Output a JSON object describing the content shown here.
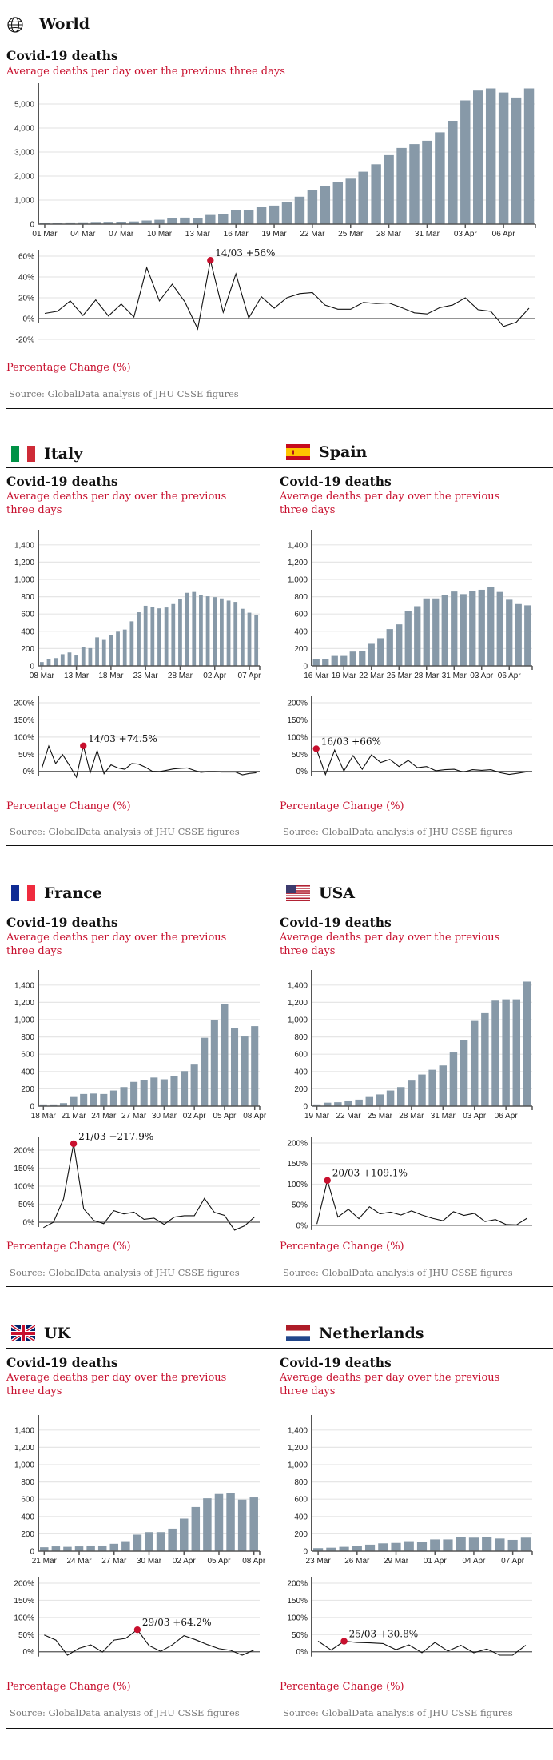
{
  "page": {
    "source_text": "Source: GlobalData analysis of JHU CSSE figures",
    "chart_title": "Covid-19 deaths",
    "chart_subtitle": "Average deaths per day over the previous three days",
    "pct_title": "Percentage Change (%)",
    "colors": {
      "bar": "#8799a8",
      "accent": "#c8102e",
      "line": "#111111",
      "grid": "#e6e6e6",
      "axis": "#555555"
    }
  },
  "sections": {
    "world": {
      "name": "World",
      "icon": "globe-icon"
    },
    "italy": {
      "name": "Italy",
      "icon": "italy-flag-icon"
    },
    "spain": {
      "name": "Spain",
      "icon": "spain-flag-icon"
    },
    "france": {
      "name": "France",
      "icon": "france-flag-icon"
    },
    "usa": {
      "name": "USA",
      "icon": "usa-flag-icon"
    },
    "uk": {
      "name": "UK",
      "icon": "uk-flag-icon"
    },
    "netherlands": {
      "name": "Netherlands",
      "icon": "netherlands-flag-icon"
    }
  },
  "chart_data": [
    {
      "id": "world-deaths",
      "type": "bar",
      "title": "Covid-19 deaths",
      "subtitle": "Average deaths per day over the previous three days",
      "xlabel": "",
      "ylabel": "",
      "ylim": [
        0,
        5600
      ],
      "yticks": [
        0,
        1000,
        2000,
        3000,
        4000,
        5000
      ],
      "yticklabels": [
        "0",
        "1,000",
        "2,000",
        "3,000",
        "4,000",
        "5,000"
      ],
      "xticks": [
        0,
        3,
        6,
        9,
        12,
        15,
        18,
        21,
        24,
        27,
        30,
        33,
        36
      ],
      "xticklabels": [
        "01 Mar",
        "04 Mar",
        "07 Mar",
        "10 Mar",
        "13 Mar",
        "16 Mar",
        "19 Mar",
        "22 Mar",
        "25 Mar",
        "28 Mar",
        "31 Mar",
        "03 Apr",
        "06 Apr"
      ],
      "values": [
        60,
        65,
        70,
        75,
        90,
        95,
        100,
        110,
        150,
        180,
        240,
        270,
        250,
        380,
        400,
        580,
        580,
        700,
        770,
        920,
        1140,
        1420,
        1600,
        1740,
        1890,
        2180,
        2490,
        2870,
        3170,
        3330,
        3470,
        3820,
        4300,
        5150,
        5560,
        5650,
        5480,
        5270,
        5650
      ],
      "grid": true
    },
    {
      "id": "world-change",
      "type": "line",
      "title": "Percentage Change (%)",
      "ylim": [
        -20,
        60
      ],
      "yticks": [
        -20,
        0,
        20,
        40,
        60
      ],
      "yticklabels": [
        "-20%",
        "0%",
        "20%",
        "40%",
        "60%"
      ],
      "values": [
        5,
        7,
        17,
        3,
        18,
        2.5,
        14,
        1.5,
        49,
        17,
        33,
        16,
        -10,
        56,
        6,
        43,
        0.5,
        21,
        10,
        20,
        24,
        25,
        13,
        9,
        9,
        15.5,
        14.5,
        15,
        10.5,
        5.5,
        4.5,
        10.5,
        13,
        20,
        8.5,
        7,
        -7.5,
        -3.5,
        10
      ],
      "highlight": {
        "index": 13,
        "label": "14/03 +56%"
      },
      "grid": true
    },
    {
      "id": "italy-deaths",
      "type": "bar",
      "title": "Covid-19 deaths",
      "subtitle": "Average deaths per day over the previous three days",
      "ylim": [
        0,
        1500
      ],
      "yticks": [
        0,
        200,
        400,
        600,
        800,
        1000,
        1200,
        1400
      ],
      "yticklabels": [
        "0",
        "200",
        "400",
        "600",
        "800",
        "1,000",
        "1,200",
        "1,400"
      ],
      "xticks": [
        0,
        5,
        10,
        15,
        20,
        25,
        30
      ],
      "xticklabels": [
        "08 Mar",
        "13 Mar",
        "18 Mar",
        "23 Mar",
        "28 Mar",
        "02 Apr",
        "07 Apr"
      ],
      "values": [
        45,
        75,
        90,
        135,
        155,
        120,
        215,
        205,
        330,
        300,
        355,
        395,
        420,
        515,
        620,
        695,
        685,
        665,
        675,
        715,
        775,
        845,
        855,
        820,
        805,
        795,
        780,
        755,
        740,
        660,
        615,
        590
      ],
      "grid": true
    },
    {
      "id": "italy-change",
      "type": "line",
      "title": "Percentage Change (%)",
      "ylim": [
        -10,
        200
      ],
      "yticks": [
        0,
        50,
        100,
        150,
        200
      ],
      "yticklabels": [
        "0%",
        "50%",
        "100%",
        "150%",
        "200%"
      ],
      "values": [
        9,
        74,
        23,
        49,
        17,
        -17,
        74.5,
        -4,
        61,
        -7,
        19,
        10,
        6,
        23,
        21,
        12,
        0,
        -1,
        3,
        7,
        9,
        10,
        3,
        -3,
        -1,
        -1,
        -2,
        -2,
        -2,
        -10,
        -6,
        -4
      ],
      "highlight": {
        "index": 6,
        "label": "14/03 +74.5%"
      },
      "grid": true
    },
    {
      "id": "spain-deaths",
      "type": "bar",
      "title": "Covid-19 deaths",
      "subtitle": "Average deaths per day over the previous three days",
      "ylim": [
        0,
        1500
      ],
      "yticks": [
        0,
        200,
        400,
        600,
        800,
        1000,
        1200,
        1400
      ],
      "yticklabels": [
        "0",
        "200",
        "400",
        "600",
        "800",
        "1,000",
        "1,200",
        "1,400"
      ],
      "xticks": [
        0,
        3,
        6,
        9,
        12,
        15,
        18,
        21
      ],
      "xticklabels": [
        "16 Mar",
        "19 Mar",
        "22 Mar",
        "25 Mar",
        "28 Mar",
        "31 Mar",
        "03 Apr",
        "06 Apr"
      ],
      "values": [
        80,
        75,
        115,
        115,
        165,
        170,
        255,
        320,
        425,
        480,
        630,
        690,
        780,
        780,
        815,
        860,
        830,
        865,
        880,
        910,
        855,
        765,
        715,
        700
      ],
      "grid": true
    },
    {
      "id": "spain-change",
      "type": "line",
      "title": "Percentage Change (%)",
      "ylim": [
        -10,
        200
      ],
      "yticks": [
        0,
        50,
        100,
        150,
        200
      ],
      "yticklabels": [
        "0%",
        "50%",
        "100%",
        "150%",
        "200%"
      ],
      "values": [
        66,
        -9,
        62,
        1,
        46,
        6,
        48,
        26,
        35,
        14,
        32,
        11,
        14,
        2,
        5,
        6,
        -2,
        5,
        3,
        5,
        -4,
        -9,
        -5,
        -1
      ],
      "highlight": {
        "index": 0,
        "label": "16/03 +66%"
      },
      "grid": true
    },
    {
      "id": "france-deaths",
      "type": "bar",
      "title": "Covid-19 deaths",
      "subtitle": "Average deaths per day over the previous three days",
      "ylim": [
        0,
        1500
      ],
      "yticks": [
        0,
        200,
        400,
        600,
        800,
        1000,
        1200,
        1400
      ],
      "yticklabels": [
        "0",
        "200",
        "400",
        "600",
        "800",
        "1,000",
        "1,200",
        "1,400"
      ],
      "xticks": [
        0,
        3,
        6,
        9,
        12,
        15,
        18,
        21
      ],
      "xticklabels": [
        "18 Mar",
        "21 Mar",
        "24 Mar",
        "27 Mar",
        "30 Mar",
        "02 Apr",
        "05 Apr",
        "08 Apr"
      ],
      "values": [
        20,
        20,
        35,
        105,
        140,
        145,
        140,
        180,
        220,
        280,
        300,
        330,
        310,
        345,
        405,
        480,
        790,
        1000,
        1180,
        900,
        805,
        925
      ],
      "grid": true
    },
    {
      "id": "france-change",
      "type": "line",
      "title": "Percentage Change (%)",
      "ylim": [
        -20,
        220
      ],
      "yticks": [
        0,
        50,
        100,
        150,
        200
      ],
      "yticklabels": [
        "0%",
        "50%",
        "100%",
        "150%",
        "200%"
      ],
      "values": [
        -15,
        0,
        65,
        217.9,
        37,
        5,
        -4,
        32,
        23,
        28,
        8,
        11,
        -6,
        14,
        18,
        18,
        66,
        27,
        19,
        -22,
        -10,
        15
      ],
      "highlight": {
        "index": 3,
        "label": "21/03 +217.9%"
      },
      "grid": true
    },
    {
      "id": "usa-deaths",
      "type": "bar",
      "title": "Covid-19 deaths",
      "subtitle": "Average deaths per day over the previous three days",
      "ylim": [
        0,
        1500
      ],
      "yticks": [
        0,
        200,
        400,
        600,
        800,
        1000,
        1200,
        1400
      ],
      "yticklabels": [
        "0",
        "200",
        "400",
        "600",
        "800",
        "1,000",
        "1,200",
        "1,400"
      ],
      "xticks": [
        0,
        3,
        6,
        9,
        12,
        15,
        18
      ],
      "xticklabels": [
        "19 Mar",
        "22 Mar",
        "25 Mar",
        "28 Mar",
        "31 Mar",
        "03 Apr",
        "06 Apr"
      ],
      "values": [
        20,
        40,
        45,
        65,
        75,
        105,
        135,
        180,
        220,
        295,
        365,
        420,
        470,
        620,
        765,
        985,
        1075,
        1220,
        1235,
        1235,
        1440
      ],
      "grid": true
    },
    {
      "id": "usa-change",
      "type": "line",
      "title": "Percentage Change (%)",
      "ylim": [
        -10,
        200
      ],
      "yticks": [
        0,
        50,
        100,
        150,
        200
      ],
      "yticklabels": [
        "0%",
        "50%",
        "100%",
        "150%",
        "200%"
      ],
      "values": [
        3,
        109.1,
        20,
        39,
        16,
        45,
        28,
        32,
        25,
        35,
        25,
        17,
        11,
        33,
        24,
        29,
        9,
        14,
        2,
        1,
        17
      ],
      "highlight": {
        "index": 1,
        "label": "20/03 +109.1%"
      },
      "grid": true
    },
    {
      "id": "uk-deaths",
      "type": "bar",
      "title": "Covid-19 deaths",
      "subtitle": "Average deaths per day over the previous three days",
      "ylim": [
        0,
        1500
      ],
      "yticks": [
        0,
        200,
        400,
        600,
        800,
        1000,
        1200,
        1400
      ],
      "yticklabels": [
        "0",
        "200",
        "400",
        "600",
        "800",
        "1,000",
        "1,200",
        "1,400"
      ],
      "xticks": [
        0,
        3,
        6,
        9,
        12,
        15,
        18
      ],
      "xticklabels": [
        "21 Mar",
        "24 Mar",
        "27 Mar",
        "30 Mar",
        "02 Apr",
        "05 Apr",
        "08 Apr"
      ],
      "values": [
        45,
        55,
        50,
        55,
        65,
        65,
        85,
        115,
        190,
        220,
        220,
        260,
        375,
        510,
        610,
        660,
        675,
        595,
        620
      ],
      "grid": true
    },
    {
      "id": "uk-change",
      "type": "line",
      "title": "Percentage Change (%)",
      "ylim": [
        -10,
        200
      ],
      "yticks": [
        0,
        50,
        100,
        150,
        200
      ],
      "yticklabels": [
        "0%",
        "50%",
        "100%",
        "150%",
        "200%"
      ],
      "values": [
        49,
        34,
        -10,
        10,
        20,
        -1,
        34,
        39,
        64.2,
        18,
        1,
        20,
        47,
        35,
        21,
        9,
        4,
        -10,
        5
      ],
      "highlight": {
        "index": 8,
        "label": "29/03 +64.2%"
      },
      "grid": true
    },
    {
      "id": "netherlands-deaths",
      "type": "bar",
      "title": "Covid-19 deaths",
      "subtitle": "Average deaths per day over the previous three days",
      "ylim": [
        0,
        1500
      ],
      "yticks": [
        0,
        200,
        400,
        600,
        800,
        1000,
        1200,
        1400
      ],
      "yticklabels": [
        "0",
        "200",
        "400",
        "600",
        "800",
        "1,000",
        "1,200",
        "1,400"
      ],
      "xticks": [
        0,
        3,
        6,
        9,
        12,
        15
      ],
      "xticklabels": [
        "23 Mar",
        "26 Mar",
        "29 Mar",
        "01 Apr",
        "04 Apr",
        "07 Apr"
      ],
      "values": [
        35,
        40,
        50,
        60,
        75,
        90,
        95,
        115,
        110,
        135,
        135,
        160,
        155,
        160,
        145,
        130,
        155
      ],
      "grid": true
    },
    {
      "id": "netherlands-change",
      "type": "line",
      "title": "Percentage Change (%)",
      "ylim": [
        -10,
        200
      ],
      "yticks": [
        0,
        50,
        100,
        150,
        200
      ],
      "yticklabels": [
        "0%",
        "50%",
        "100%",
        "150%",
        "200%"
      ],
      "values": [
        31,
        5,
        30.8,
        27,
        26,
        24,
        6,
        20,
        -3,
        27,
        2,
        19,
        -3,
        8,
        -10,
        -10,
        19
      ],
      "highlight": {
        "index": 2,
        "label": "25/03 +30.8%"
      },
      "grid": true
    }
  ]
}
